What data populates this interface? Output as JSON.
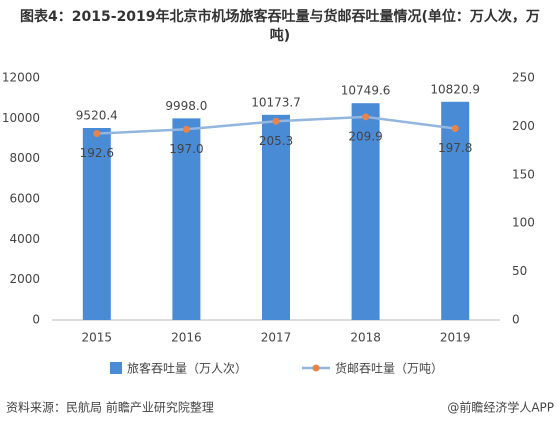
{
  "chart_data": {
    "type": "bar_line",
    "title": "图表4：2015-2019年北京市机场旅客吞吐量与货邮吞吐量情况(单位：万人次，万吨)",
    "categories": [
      "2015",
      "2016",
      "2017",
      "2018",
      "2019"
    ],
    "series": [
      {
        "name": "旅客吞吐量（万人次）",
        "type": "bar",
        "color": "#4a8bd6",
        "axis": "y",
        "values": [
          9520.4,
          9998.0,
          10173.7,
          10749.6,
          10820.9
        ],
        "value_labels": [
          "9520.4",
          "9998.0",
          "10173.7",
          "10749.6",
          "10820.9"
        ]
      },
      {
        "name": "货邮吞吐量（万吨）",
        "type": "line",
        "color": "#92b6dd",
        "marker_color": "#e8834a",
        "axis": "y2",
        "values": [
          192.6,
          197.0,
          205.3,
          209.9,
          197.8
        ],
        "value_labels": [
          "192.6",
          "197.0",
          "205.3",
          "209.9",
          "197.8"
        ]
      }
    ],
    "ylim": [
      0,
      12000
    ],
    "yticks": [
      0,
      2000,
      4000,
      6000,
      8000,
      10000,
      12000
    ],
    "y2lim": [
      0,
      250
    ],
    "y2ticks": [
      0,
      50,
      100,
      150,
      200,
      250
    ],
    "grid": false,
    "legend": "bottom",
    "source": "资料来源：民航局 前瞻产业研究院整理",
    "credit": "@前瞻经济学人APP"
  }
}
